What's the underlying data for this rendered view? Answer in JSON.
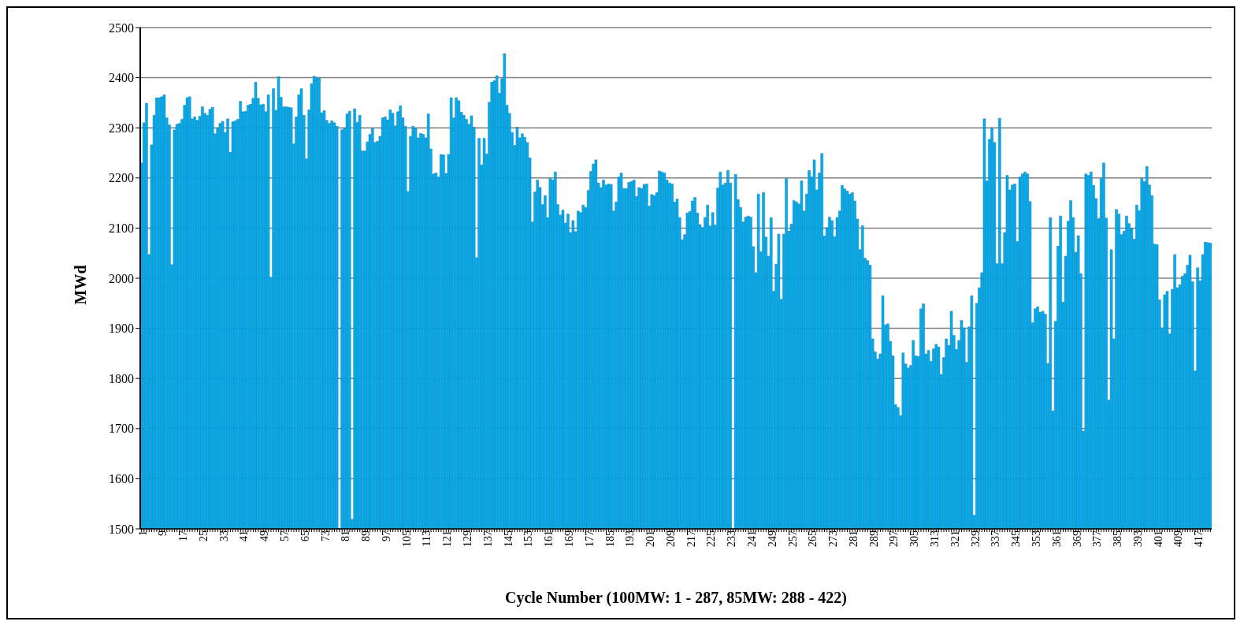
{
  "chart_data": {
    "type": "bar",
    "xlabel": "Cycle Number (100MW: 1 - 287, 85MW: 288 - 422)",
    "ylabel": "MWd",
    "color": "#00aeef",
    "ylim": [
      1500,
      2500
    ],
    "yticks": [
      1500,
      1600,
      1700,
      1800,
      1900,
      2000,
      2100,
      2200,
      2300,
      2400,
      2500
    ],
    "grid": "y",
    "categories": [
      "1",
      null,
      null,
      null,
      null,
      null,
      null,
      null,
      "9",
      null,
      null,
      null,
      null,
      null,
      null,
      null,
      "17",
      null,
      null,
      null,
      null,
      null,
      null,
      null,
      "25",
      null,
      null,
      null,
      null,
      null,
      null,
      null,
      "33",
      null,
      null,
      null,
      null,
      null,
      null,
      null,
      "41",
      null,
      null,
      null,
      null,
      null,
      null,
      null,
      "49",
      null,
      null,
      null,
      null,
      null,
      null,
      null,
      "57",
      null,
      null,
      null,
      null,
      null,
      null,
      null,
      "65",
      null,
      null,
      null,
      null,
      null,
      null,
      null,
      "73",
      null,
      null,
      null,
      null,
      null,
      null,
      null,
      "81",
      null,
      null,
      null,
      null,
      null,
      null,
      null,
      "89",
      null,
      null,
      null,
      null,
      null,
      null,
      null,
      "97",
      null,
      null,
      null,
      null,
      null,
      null,
      null,
      "105",
      null,
      null,
      null,
      null,
      null,
      null,
      null,
      "113",
      null,
      null,
      null,
      null,
      null,
      null,
      null,
      "121",
      null,
      null,
      null,
      null,
      null,
      null,
      null,
      "129",
      null,
      null,
      null,
      null,
      null,
      null,
      null,
      "137",
      null,
      null,
      null,
      null,
      null,
      null,
      null,
      "145",
      null,
      null,
      null,
      null,
      null,
      null,
      null,
      "153",
      null,
      null,
      null,
      null,
      null,
      null,
      null,
      "161",
      null,
      null,
      null,
      null,
      null,
      null,
      null,
      "169",
      null,
      null,
      null,
      null,
      null,
      null,
      null,
      "177",
      null,
      null,
      null,
      null,
      null,
      null,
      null,
      "185",
      null,
      null,
      null,
      null,
      null,
      null,
      null,
      "193",
      null,
      null,
      null,
      null,
      null,
      null,
      null,
      "201",
      null,
      null,
      null,
      null,
      null,
      null,
      null,
      "209",
      null,
      null,
      null,
      null,
      null,
      null,
      null,
      "217",
      null,
      null,
      null,
      null,
      null,
      null,
      null,
      "225",
      null,
      null,
      null,
      null,
      null,
      null,
      null,
      "233",
      null,
      null,
      null,
      null,
      null,
      null,
      null,
      "241",
      null,
      null,
      null,
      null,
      null,
      null,
      null,
      "249",
      null,
      null,
      null,
      null,
      null,
      null,
      null,
      "257",
      null,
      null,
      null,
      null,
      null,
      null,
      null,
      "265",
      null,
      null,
      null,
      null,
      null,
      null,
      null,
      "273",
      null,
      null,
      null,
      null,
      null,
      null,
      null,
      "281",
      null,
      null,
      null,
      null,
      null,
      null,
      null,
      "289",
      null,
      null,
      null,
      null,
      null,
      null,
      null,
      "297",
      null,
      null,
      null,
      null,
      null,
      null,
      null,
      "305",
      null,
      null,
      null,
      null,
      null,
      null,
      null,
      "313",
      null,
      null,
      null,
      null,
      null,
      null,
      null,
      "321",
      null,
      null,
      null,
      null,
      null,
      null,
      null,
      "329",
      null,
      null,
      null,
      null,
      null,
      null,
      null,
      "337",
      null,
      null,
      null,
      null,
      null,
      null,
      null,
      "345",
      null,
      null,
      null,
      null,
      null,
      null,
      null,
      "353",
      null,
      null,
      null,
      null,
      null,
      null,
      null,
      "361",
      null,
      null,
      null,
      null,
      null,
      null,
      null,
      "369",
      null,
      null,
      null,
      null,
      null,
      null,
      null,
      "377",
      null,
      null,
      null,
      null,
      null,
      null,
      null,
      "385",
      null,
      null,
      null,
      null,
      null,
      null,
      null,
      "393",
      null,
      null,
      null,
      null,
      null,
      null,
      null,
      "401",
      null,
      null,
      null,
      null,
      null,
      null,
      null,
      "409",
      null,
      null,
      null,
      null,
      null,
      null,
      null,
      "417",
      null,
      null,
      null,
      null,
      null
    ],
    "values": [
      2230,
      2310,
      2349,
      2047,
      2266,
      2325,
      2360,
      2360,
      2362,
      2366,
      2320,
      2306,
      2027,
      2296,
      2307,
      2309,
      2317,
      2345,
      2360,
      2362,
      2318,
      2322,
      2315,
      2323,
      2342,
      2329,
      2325,
      2337,
      2341,
      2288,
      2300,
      2309,
      2313,
      2291,
      2318,
      2251,
      2312,
      2314,
      2317,
      2353,
      2332,
      2333,
      2345,
      2347,
      2359,
      2391,
      2359,
      2346,
      2347,
      2332,
      2366,
      2002,
      2378,
      2335,
      2402,
      2361,
      2342,
      2342,
      2341,
      2340,
      2268,
      2322,
      2366,
      2378,
      2325,
      2238,
      2336,
      2388,
      2403,
      2401,
      2399,
      2330,
      2334,
      2315,
      2309,
      2314,
      2310,
      2303,
      1500,
      2296,
      2299,
      2328,
      2333,
      1519,
      2338,
      2311,
      2325,
      2254,
      2254,
      2272,
      2287,
      2299,
      2271,
      2273,
      2283,
      2320,
      2322,
      2316,
      2336,
      2329,
      2304,
      2332,
      2344,
      2320,
      2303,
      2173,
      2283,
      2303,
      2299,
      2280,
      2289,
      2287,
      2280,
      2328,
      2258,
      2208,
      2210,
      2202,
      2247,
      2246,
      2209,
      2247,
      2360,
      2320,
      2360,
      2354,
      2331,
      2325,
      2317,
      2307,
      2324,
      2301,
      2041,
      2279,
      2226,
      2279,
      2248,
      2351,
      2391,
      2394,
      2404,
      2369,
      2398,
      2448,
      2345,
      2329,
      2291,
      2265,
      2301,
      2280,
      2288,
      2281,
      2271,
      2240,
      2112,
      2172,
      2196,
      2181,
      2147,
      2165,
      2121,
      2199,
      2196,
      2212,
      2147,
      2126,
      2136,
      2110,
      2128,
      2091,
      2115,
      2093,
      2134,
      2131,
      2146,
      2141,
      2175,
      2213,
      2228,
      2236,
      2190,
      2181,
      2196,
      2186,
      2188,
      2187,
      2134,
      2152,
      2202,
      2210,
      2179,
      2179,
      2191,
      2193,
      2196,
      2163,
      2181,
      2179,
      2187,
      2188,
      2144,
      2167,
      2165,
      2171,
      2214,
      2212,
      2210,
      2196,
      2190,
      2188,
      2152,
      2158,
      2121,
      2077,
      2087,
      2130,
      2133,
      2154,
      2161,
      2130,
      2107,
      2101,
      2121,
      2146,
      2104,
      2131,
      2106,
      2180,
      2212,
      2186,
      2190,
      2215,
      2190,
      1500,
      2207,
      2157,
      2141,
      2112,
      2122,
      2124,
      2122,
      2063,
      2011,
      2168,
      2053,
      2171,
      2082,
      2044,
      2121,
      1974,
      2028,
      2088,
      1958,
      2088,
      2199,
      2094,
      2108,
      2155,
      2152,
      2148,
      2194,
      2134,
      2168,
      2215,
      2202,
      2236,
      2176,
      2210,
      2249,
      2084,
      2101,
      2122,
      2115,
      2083,
      2121,
      2134,
      2185,
      2178,
      2174,
      2168,
      2171,
      2154,
      2118,
      2057,
      2105,
      2040,
      2035,
      2026,
      1879,
      1853,
      1839,
      1849,
      1965,
      1907,
      1909,
      1874,
      1845,
      1748,
      1742,
      1726,
      1851,
      1829,
      1821,
      1826,
      1876,
      1845,
      1844,
      1939,
      1949,
      1849,
      1856,
      1834,
      1859,
      1868,
      1863,
      1808,
      1842,
      1879,
      1866,
      1934,
      1886,
      1858,
      1876,
      1916,
      1901,
      1832,
      1903,
      1965,
      1527,
      1950,
      1981,
      2011,
      2318,
      2194,
      2277,
      2300,
      2271,
      2029,
      2319,
      2029,
      2091,
      2205,
      2176,
      2186,
      2188,
      2073,
      2202,
      2208,
      2212,
      2208,
      2153,
      1911,
      1939,
      1943,
      1932,
      1934,
      1928,
      1830,
      2121,
      1735,
      1914,
      2064,
      2124,
      1952,
      2044,
      2114,
      2155,
      2121,
      2052,
      2085,
      2009,
      1695,
      2208,
      2205,
      2212,
      2185,
      2159,
      2119,
      2199,
      2230,
      2120,
      1757,
      2057,
      1879,
      2137,
      2128,
      2087,
      2094,
      2124,
      2109,
      2099,
      2078,
      2146,
      2135,
      2199,
      2193,
      2223,
      2186,
      2165,
      2068,
      2067,
      1957,
      1901,
      1967,
      1974,
      1889,
      1978,
      2047,
      1981,
      1987,
      2004,
      2009,
      2026,
      2046,
      1993,
      1815,
      2021,
      1995,
      2047,
      2072,
      2071,
      2070
    ]
  }
}
